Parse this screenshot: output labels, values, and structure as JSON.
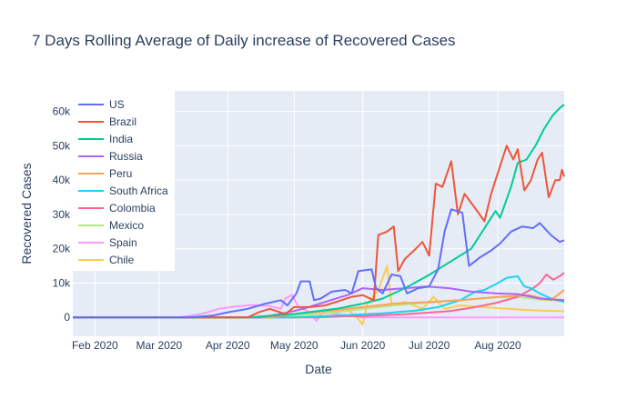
{
  "chart_data": {
    "type": "line",
    "title": "7 Days Rolling Average of Daily increase of Recovered Cases",
    "xlabel": "Date",
    "ylabel": "Recovered Cases",
    "x_range": [
      "2020-01-22",
      "2020-08-31"
    ],
    "ylim": [
      -5500,
      66000
    ],
    "x_ticks": [
      {
        "date": "2020-02-01",
        "label": "Feb 2020"
      },
      {
        "date": "2020-03-01",
        "label": "Mar 2020"
      },
      {
        "date": "2020-04-01",
        "label": "Apr 2020"
      },
      {
        "date": "2020-05-01",
        "label": "May 2020"
      },
      {
        "date": "2020-06-01",
        "label": "Jun 2020"
      },
      {
        "date": "2020-07-01",
        "label": "Jul 2020"
      },
      {
        "date": "2020-08-01",
        "label": "Aug 2020"
      }
    ],
    "y_ticks": [
      {
        "value": 0,
        "label": "0"
      },
      {
        "value": 10000,
        "label": "10k"
      },
      {
        "value": 20000,
        "label": "20k"
      },
      {
        "value": 30000,
        "label": "30k"
      },
      {
        "value": 40000,
        "label": "40k"
      },
      {
        "value": 50000,
        "label": "50k"
      },
      {
        "value": 60000,
        "label": "60k"
      }
    ],
    "grid": true,
    "legend_position": "top-left",
    "series": [
      {
        "name": "US",
        "color": "#636efa",
        "points": [
          [
            "2020-01-22",
            0
          ],
          [
            "2020-03-15",
            0
          ],
          [
            "2020-03-25",
            500
          ],
          [
            "2020-04-01",
            1500
          ],
          [
            "2020-04-10",
            2500
          ],
          [
            "2020-04-18",
            4000
          ],
          [
            "2020-04-25",
            5000
          ],
          [
            "2020-04-28",
            3500
          ],
          [
            "2020-05-02",
            7000
          ],
          [
            "2020-05-04",
            10500
          ],
          [
            "2020-05-08",
            10500
          ],
          [
            "2020-05-10",
            5000
          ],
          [
            "2020-05-13",
            5500
          ],
          [
            "2020-05-18",
            7500
          ],
          [
            "2020-05-24",
            8000
          ],
          [
            "2020-05-27",
            7000
          ],
          [
            "2020-05-30",
            13500
          ],
          [
            "2020-06-05",
            14000
          ],
          [
            "2020-06-07",
            8500
          ],
          [
            "2020-06-10",
            7000
          ],
          [
            "2020-06-14",
            12500
          ],
          [
            "2020-06-18",
            12000
          ],
          [
            "2020-06-21",
            7000
          ],
          [
            "2020-06-26",
            8500
          ],
          [
            "2020-07-01",
            9000
          ],
          [
            "2020-07-05",
            14000
          ],
          [
            "2020-07-08",
            25000
          ],
          [
            "2020-07-11",
            31500
          ],
          [
            "2020-07-16",
            30500
          ],
          [
            "2020-07-19",
            15000
          ],
          [
            "2020-07-24",
            17500
          ],
          [
            "2020-07-29",
            19500
          ],
          [
            "2020-08-02",
            21500
          ],
          [
            "2020-08-07",
            25000
          ],
          [
            "2020-08-12",
            26500
          ],
          [
            "2020-08-17",
            26000
          ],
          [
            "2020-08-20",
            27500
          ],
          [
            "2020-08-25",
            24000
          ],
          [
            "2020-08-29",
            22000
          ],
          [
            "2020-08-31",
            22500
          ]
        ]
      },
      {
        "name": "Brazil",
        "color": "#ef553b",
        "points": [
          [
            "2020-01-22",
            0
          ],
          [
            "2020-04-10",
            0
          ],
          [
            "2020-04-15",
            1500
          ],
          [
            "2020-04-20",
            2500
          ],
          [
            "2020-04-27",
            1000
          ],
          [
            "2020-05-01",
            3000
          ],
          [
            "2020-05-08",
            3000
          ],
          [
            "2020-05-15",
            3500
          ],
          [
            "2020-05-20",
            4500
          ],
          [
            "2020-05-27",
            6000
          ],
          [
            "2020-06-01",
            6500
          ],
          [
            "2020-06-06",
            5000
          ],
          [
            "2020-06-08",
            24000
          ],
          [
            "2020-06-12",
            25000
          ],
          [
            "2020-06-15",
            26500
          ],
          [
            "2020-06-17",
            13500
          ],
          [
            "2020-06-20",
            17000
          ],
          [
            "2020-06-25",
            20000
          ],
          [
            "2020-06-28",
            22000
          ],
          [
            "2020-07-01",
            18000
          ],
          [
            "2020-07-04",
            39000
          ],
          [
            "2020-07-07",
            38000
          ],
          [
            "2020-07-11",
            45500
          ],
          [
            "2020-07-14",
            30000
          ],
          [
            "2020-07-17",
            36000
          ],
          [
            "2020-07-21",
            32500
          ],
          [
            "2020-07-26",
            28000
          ],
          [
            "2020-07-29",
            36000
          ],
          [
            "2020-08-01",
            42000
          ],
          [
            "2020-08-05",
            50000
          ],
          [
            "2020-08-08",
            46000
          ],
          [
            "2020-08-10",
            49000
          ],
          [
            "2020-08-13",
            37000
          ],
          [
            "2020-08-16",
            40000
          ],
          [
            "2020-08-19",
            46000
          ],
          [
            "2020-08-21",
            48000
          ],
          [
            "2020-08-24",
            35000
          ],
          [
            "2020-08-27",
            40000
          ],
          [
            "2020-08-29",
            40000
          ],
          [
            "2020-08-30",
            43000
          ],
          [
            "2020-08-31",
            41000
          ]
        ]
      },
      {
        "name": "India",
        "color": "#00cc96",
        "points": [
          [
            "2020-01-22",
            0
          ],
          [
            "2020-04-10",
            0
          ],
          [
            "2020-05-01",
            1000
          ],
          [
            "2020-05-20",
            2500
          ],
          [
            "2020-06-01",
            4000
          ],
          [
            "2020-06-10",
            5500
          ],
          [
            "2020-06-20",
            8500
          ],
          [
            "2020-06-30",
            12000
          ],
          [
            "2020-07-10",
            16000
          ],
          [
            "2020-07-20",
            20000
          ],
          [
            "2020-07-25",
            25000
          ],
          [
            "2020-07-31",
            31000
          ],
          [
            "2020-08-02",
            29000
          ],
          [
            "2020-08-07",
            38000
          ],
          [
            "2020-08-10",
            45000
          ],
          [
            "2020-08-14",
            46000
          ],
          [
            "2020-08-18",
            50000
          ],
          [
            "2020-08-22",
            55000
          ],
          [
            "2020-08-26",
            59000
          ],
          [
            "2020-08-29",
            61000
          ],
          [
            "2020-08-31",
            62000
          ]
        ]
      },
      {
        "name": "Russia",
        "color": "#ab63fa",
        "points": [
          [
            "2020-01-22",
            0
          ],
          [
            "2020-04-15",
            0
          ],
          [
            "2020-04-25",
            1000
          ],
          [
            "2020-05-05",
            2500
          ],
          [
            "2020-05-15",
            4500
          ],
          [
            "2020-05-25",
            6500
          ],
          [
            "2020-06-01",
            8500
          ],
          [
            "2020-06-10",
            8000
          ],
          [
            "2020-06-20",
            8500
          ],
          [
            "2020-06-30",
            9000
          ],
          [
            "2020-07-10",
            8500
          ],
          [
            "2020-07-20",
            7500
          ],
          [
            "2020-07-31",
            7000
          ],
          [
            "2020-08-10",
            6800
          ],
          [
            "2020-08-20",
            5500
          ],
          [
            "2020-08-31",
            5000
          ]
        ]
      },
      {
        "name": "Peru",
        "color": "#ffa15a",
        "points": [
          [
            "2020-01-22",
            0
          ],
          [
            "2020-04-20",
            0
          ],
          [
            "2020-05-01",
            1000
          ],
          [
            "2020-05-15",
            1800
          ],
          [
            "2020-06-01",
            3000
          ],
          [
            "2020-06-15",
            4000
          ],
          [
            "2020-07-01",
            4500
          ],
          [
            "2020-07-15",
            5000
          ],
          [
            "2020-08-01",
            6000
          ],
          [
            "2020-08-15",
            6500
          ],
          [
            "2020-08-25",
            5000
          ],
          [
            "2020-08-29",
            7000
          ],
          [
            "2020-08-31",
            8000
          ]
        ]
      },
      {
        "name": "South Africa",
        "color": "#19d3f3",
        "points": [
          [
            "2020-01-22",
            0
          ],
          [
            "2020-05-01",
            0
          ],
          [
            "2020-05-20",
            500
          ],
          [
            "2020-06-10",
            1200
          ],
          [
            "2020-06-25",
            2000
          ],
          [
            "2020-07-05",
            3000
          ],
          [
            "2020-07-15",
            5000
          ],
          [
            "2020-07-22",
            7500
          ],
          [
            "2020-07-26",
            8000
          ],
          [
            "2020-08-01",
            10000
          ],
          [
            "2020-08-05",
            11500
          ],
          [
            "2020-08-10",
            12000
          ],
          [
            "2020-08-13",
            9000
          ],
          [
            "2020-08-16",
            8500
          ],
          [
            "2020-08-20",
            7000
          ],
          [
            "2020-08-25",
            5500
          ],
          [
            "2020-08-31",
            4500
          ]
        ]
      },
      {
        "name": "Colombia",
        "color": "#ff6692",
        "points": [
          [
            "2020-01-22",
            0
          ],
          [
            "2020-05-10",
            0
          ],
          [
            "2020-06-01",
            400
          ],
          [
            "2020-06-20",
            900
          ],
          [
            "2020-07-10",
            1800
          ],
          [
            "2020-07-20",
            2800
          ],
          [
            "2020-07-31",
            4200
          ],
          [
            "2020-08-10",
            6000
          ],
          [
            "2020-08-17",
            8500
          ],
          [
            "2020-08-20",
            10000
          ],
          [
            "2020-08-23",
            12500
          ],
          [
            "2020-08-26",
            11000
          ],
          [
            "2020-08-29",
            12000
          ],
          [
            "2020-08-31",
            13000
          ]
        ]
      },
      {
        "name": "Mexico",
        "color": "#b6e880",
        "points": [
          [
            "2020-01-22",
            0
          ],
          [
            "2020-04-20",
            0
          ],
          [
            "2020-05-05",
            700
          ],
          [
            "2020-05-20",
            1500
          ],
          [
            "2020-06-05",
            2800
          ],
          [
            "2020-06-20",
            3800
          ],
          [
            "2020-07-01",
            4300
          ],
          [
            "2020-07-15",
            5000
          ],
          [
            "2020-07-31",
            5800
          ],
          [
            "2020-08-10",
            6000
          ],
          [
            "2020-08-20",
            5200
          ],
          [
            "2020-08-31",
            4800
          ]
        ]
      },
      {
        "name": "Spain",
        "color": "#ff97ff",
        "points": [
          [
            "2020-01-22",
            0
          ],
          [
            "2020-03-10",
            0
          ],
          [
            "2020-03-20",
            1000
          ],
          [
            "2020-03-28",
            2500
          ],
          [
            "2020-04-05",
            3200
          ],
          [
            "2020-04-12",
            3600
          ],
          [
            "2020-04-20",
            3300
          ],
          [
            "2020-04-25",
            2500
          ],
          [
            "2020-04-27",
            5500
          ],
          [
            "2020-04-30",
            6500
          ],
          [
            "2020-05-03",
            3000
          ],
          [
            "2020-05-08",
            1500
          ],
          [
            "2020-05-11",
            -1000
          ],
          [
            "2020-05-14",
            1500
          ],
          [
            "2020-05-20",
            1000
          ],
          [
            "2020-05-25",
            500
          ],
          [
            "2020-06-01",
            0
          ],
          [
            "2020-08-31",
            0
          ]
        ]
      },
      {
        "name": "Chile",
        "color": "#fecb52",
        "points": [
          [
            "2020-01-22",
            0
          ],
          [
            "2020-04-20",
            0
          ],
          [
            "2020-05-01",
            500
          ],
          [
            "2020-05-15",
            1200
          ],
          [
            "2020-05-25",
            2500
          ],
          [
            "2020-05-30",
            -500
          ],
          [
            "2020-06-01",
            -2000
          ],
          [
            "2020-06-03",
            4000
          ],
          [
            "2020-06-08",
            8000
          ],
          [
            "2020-06-12",
            15000
          ],
          [
            "2020-06-14",
            3500
          ],
          [
            "2020-06-20",
            4500
          ],
          [
            "2020-06-28",
            2500
          ],
          [
            "2020-07-03",
            6000
          ],
          [
            "2020-07-08",
            2500
          ],
          [
            "2020-07-15",
            3500
          ],
          [
            "2020-07-25",
            3000
          ],
          [
            "2020-08-05",
            2500
          ],
          [
            "2020-08-20",
            2000
          ],
          [
            "2020-08-31",
            1800
          ]
        ]
      }
    ]
  }
}
